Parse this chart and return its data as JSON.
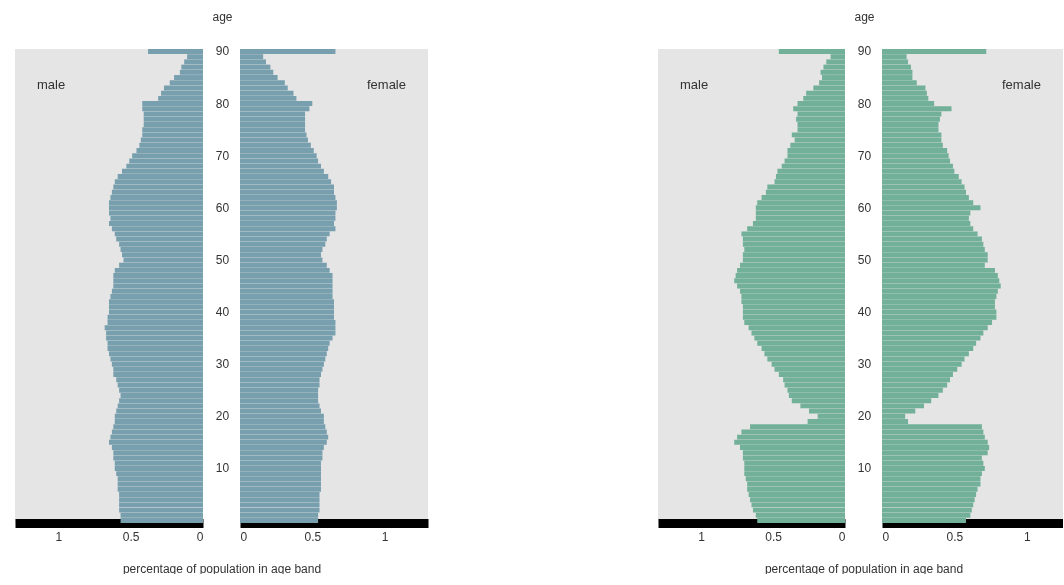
{
  "chart_data": [
    {
      "type": "bar",
      "orientation": "horizontal",
      "xlabel": "percentage of population in age band",
      "xlim": [
        1.3,
        0
      ],
      "xticks": [
        1,
        0.5,
        0
      ],
      "grid": false,
      "legend": false,
      "tick_labels": "x",
      "categories": [
        "90",
        null,
        null,
        null,
        null,
        null,
        null,
        null,
        null,
        null,
        "80",
        null,
        null,
        null,
        null,
        null,
        null,
        null,
        null,
        null,
        "70",
        null,
        null,
        null,
        null,
        null,
        null,
        null,
        null,
        null,
        "60",
        null,
        null,
        null,
        null,
        null,
        null,
        null,
        null,
        null,
        "50",
        null,
        null,
        null,
        null,
        null,
        null,
        null,
        null,
        null,
        "40",
        null,
        null,
        null,
        null,
        null,
        null,
        null,
        null,
        null,
        "30",
        null,
        null,
        null,
        null,
        null,
        null,
        null,
        null,
        null,
        "20",
        null,
        null,
        null,
        null,
        null,
        null,
        null,
        null,
        null,
        "10",
        null,
        null,
        null,
        null,
        null,
        null,
        null,
        null,
        null,
        null
      ],
      "series": [
        {
          "name": "male",
          "color": "#789fae",
          "values": [
            0.38,
            0.11,
            0.13,
            0.15,
            0.16,
            0.2,
            0.23,
            0.27,
            0.29,
            0.31,
            0.42,
            0.42,
            0.41,
            0.41,
            0.41,
            0.42,
            0.42,
            0.43,
            0.44,
            0.46,
            0.49,
            0.51,
            0.53,
            0.56,
            0.59,
            0.61,
            0.62,
            0.63,
            0.64,
            0.65,
            0.65,
            0.65,
            0.64,
            0.65,
            0.63,
            0.61,
            0.6,
            0.58,
            0.57,
            0.56,
            0.55,
            0.58,
            0.61,
            0.62,
            0.62,
            0.62,
            0.63,
            0.64,
            0.65,
            0.65,
            0.65,
            0.66,
            0.66,
            0.68,
            0.67,
            0.67,
            0.66,
            0.66,
            0.65,
            0.64,
            0.63,
            0.62,
            0.62,
            0.6,
            0.59,
            0.58,
            0.57,
            0.58,
            0.59,
            0.6,
            0.61,
            0.61,
            0.62,
            0.63,
            0.64,
            0.65,
            0.63,
            0.62,
            0.62,
            0.61,
            0.61,
            0.6,
            0.59,
            0.59,
            0.59,
            0.58,
            0.58,
            0.58,
            0.58,
            0.57,
            0.57
          ]
        }
      ]
    },
    {
      "type": "bar",
      "orientation": "horizontal",
      "ylabel": "age",
      "xlim": [
        0,
        1.3
      ],
      "xticks": [
        0,
        0.5,
        1
      ],
      "grid": false,
      "legend": false,
      "categories": [
        "90",
        null,
        null,
        null,
        null,
        null,
        null,
        null,
        null,
        null,
        "80",
        null,
        null,
        null,
        null,
        null,
        null,
        null,
        null,
        null,
        "70",
        null,
        null,
        null,
        null,
        null,
        null,
        null,
        null,
        null,
        "60",
        null,
        null,
        null,
        null,
        null,
        null,
        null,
        null,
        null,
        "50",
        null,
        null,
        null,
        null,
        null,
        null,
        null,
        null,
        null,
        "40",
        null,
        null,
        null,
        null,
        null,
        null,
        null,
        null,
        null,
        "30",
        null,
        null,
        null,
        null,
        null,
        null,
        null,
        null,
        null,
        "20",
        null,
        null,
        null,
        null,
        null,
        null,
        null,
        null,
        null,
        "10",
        null,
        null,
        null,
        null,
        null,
        null,
        null,
        null,
        null,
        null
      ],
      "series": [
        {
          "name": "female",
          "color": "#789fae",
          "values": [
            0.66,
            0.16,
            0.18,
            0.21,
            0.23,
            0.26,
            0.31,
            0.33,
            0.37,
            0.39,
            0.5,
            0.48,
            0.45,
            0.45,
            0.45,
            0.45,
            0.46,
            0.47,
            0.49,
            0.51,
            0.53,
            0.54,
            0.56,
            0.58,
            0.61,
            0.63,
            0.65,
            0.65,
            0.66,
            0.67,
            0.67,
            0.66,
            0.66,
            0.65,
            0.66,
            0.62,
            0.6,
            0.59,
            0.57,
            0.56,
            0.57,
            0.6,
            0.62,
            0.64,
            0.64,
            0.64,
            0.64,
            0.64,
            0.65,
            0.65,
            0.65,
            0.65,
            0.66,
            0.66,
            0.66,
            0.64,
            0.62,
            0.61,
            0.6,
            0.59,
            0.58,
            0.57,
            0.56,
            0.55,
            0.55,
            0.54,
            0.54,
            0.54,
            0.55,
            0.56,
            0.58,
            0.58,
            0.59,
            0.6,
            0.61,
            0.6,
            0.58,
            0.57,
            0.57,
            0.56,
            0.56,
            0.56,
            0.56,
            0.56,
            0.56,
            0.55,
            0.55,
            0.55,
            0.55,
            0.54,
            0.54
          ]
        }
      ]
    },
    {
      "type": "bar",
      "orientation": "horizontal",
      "xlabel": "percentage of population in age band",
      "xlim": [
        1.3,
        0
      ],
      "xticks": [
        1,
        0.5,
        0
      ],
      "grid": false,
      "legend": false,
      "tick_labels": "x",
      "categories": [
        "90",
        null,
        null,
        null,
        null,
        null,
        null,
        null,
        null,
        null,
        "80",
        null,
        null,
        null,
        null,
        null,
        null,
        null,
        null,
        null,
        "70",
        null,
        null,
        null,
        null,
        null,
        null,
        null,
        null,
        null,
        "60",
        null,
        null,
        null,
        null,
        null,
        null,
        null,
        null,
        null,
        "50",
        null,
        null,
        null,
        null,
        null,
        null,
        null,
        null,
        null,
        "40",
        null,
        null,
        null,
        null,
        null,
        null,
        null,
        null,
        null,
        "30",
        null,
        null,
        null,
        null,
        null,
        null,
        null,
        null,
        null,
        "20",
        null,
        null,
        null,
        null,
        null,
        null,
        null,
        null,
        null,
        "10",
        null,
        null,
        null,
        null,
        null,
        null,
        null,
        null,
        null,
        null
      ],
      "series": [
        {
          "name": "male",
          "color": "#72b09a",
          "values": [
            0.46,
            0.1,
            0.13,
            0.15,
            0.17,
            0.16,
            0.18,
            0.22,
            0.27,
            0.29,
            0.33,
            0.36,
            0.33,
            0.34,
            0.33,
            0.33,
            0.37,
            0.35,
            0.38,
            0.4,
            0.4,
            0.42,
            0.44,
            0.47,
            0.48,
            0.49,
            0.54,
            0.55,
            0.58,
            0.61,
            0.62,
            0.62,
            0.62,
            0.64,
            0.68,
            0.72,
            0.71,
            0.71,
            0.7,
            0.71,
            0.71,
            0.73,
            0.75,
            0.76,
            0.77,
            0.75,
            0.73,
            0.72,
            0.72,
            0.71,
            0.71,
            0.71,
            0.7,
            0.67,
            0.65,
            0.63,
            0.61,
            0.58,
            0.56,
            0.54,
            0.51,
            0.49,
            0.46,
            0.43,
            0.42,
            0.4,
            0.39,
            0.37,
            0.31,
            0.25,
            0.19,
            0.26,
            0.66,
            0.72,
            0.75,
            0.77,
            0.73,
            0.71,
            0.71,
            0.7,
            0.7,
            0.7,
            0.69,
            0.68,
            0.68,
            0.67,
            0.66,
            0.65,
            0.64,
            0.62,
            0.61
          ]
        }
      ]
    },
    {
      "type": "bar",
      "orientation": "horizontal",
      "ylabel": "age",
      "xlim": [
        0,
        1.25
      ],
      "xticks": [
        0,
        0.5,
        1
      ],
      "grid": false,
      "legend": false,
      "categories": [
        "90",
        null,
        null,
        null,
        null,
        null,
        null,
        null,
        null,
        null,
        "80",
        null,
        null,
        null,
        null,
        null,
        null,
        null,
        null,
        null,
        "70",
        null,
        null,
        null,
        null,
        null,
        null,
        null,
        null,
        null,
        "60",
        null,
        null,
        null,
        null,
        null,
        null,
        null,
        null,
        null,
        "50",
        null,
        null,
        null,
        null,
        null,
        null,
        null,
        null,
        null,
        "40",
        null,
        null,
        null,
        null,
        null,
        null,
        null,
        null,
        null,
        "30",
        null,
        null,
        null,
        null,
        null,
        null,
        null,
        null,
        null,
        "20",
        null,
        null,
        null,
        null,
        null,
        null,
        null,
        null,
        null,
        "10",
        null,
        null,
        null,
        null,
        null,
        null,
        null,
        null,
        null,
        null
      ],
      "series": [
        {
          "name": "female",
          "color": "#72b09a",
          "values": [
            0.72,
            0.17,
            0.18,
            0.2,
            0.21,
            0.21,
            0.24,
            0.3,
            0.31,
            0.32,
            0.36,
            0.48,
            0.41,
            0.4,
            0.39,
            0.39,
            0.41,
            0.41,
            0.42,
            0.45,
            0.46,
            0.47,
            0.49,
            0.5,
            0.53,
            0.55,
            0.57,
            0.58,
            0.6,
            0.63,
            0.68,
            0.61,
            0.6,
            0.61,
            0.63,
            0.66,
            0.69,
            0.7,
            0.71,
            0.73,
            0.73,
            0.71,
            0.78,
            0.8,
            0.81,
            0.82,
            0.8,
            0.79,
            0.78,
            0.78,
            0.79,
            0.79,
            0.76,
            0.73,
            0.7,
            0.68,
            0.65,
            0.63,
            0.6,
            0.57,
            0.55,
            0.52,
            0.49,
            0.47,
            0.45,
            0.42,
            0.39,
            0.34,
            0.29,
            0.23,
            0.16,
            0.18,
            0.69,
            0.7,
            0.71,
            0.73,
            0.74,
            0.73,
            0.69,
            0.7,
            0.71,
            0.69,
            0.68,
            0.68,
            0.66,
            0.65,
            0.64,
            0.63,
            0.62,
            0.61,
            0.58
          ]
        }
      ]
    }
  ]
}
